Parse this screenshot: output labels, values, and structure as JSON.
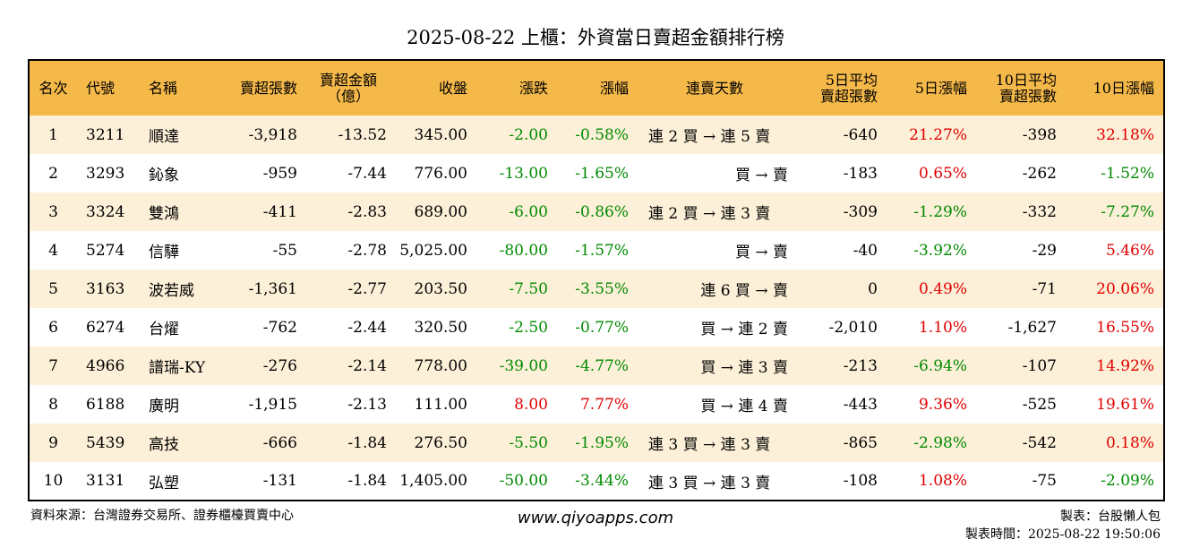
{
  "title": "2025-08-22 上櫃：外資當日賣超金額排行榜",
  "colors": {
    "header_bg": "#f5b94a",
    "row_odd_bg": "#fdf0d8",
    "up": "#e00000",
    "down": "#008a00"
  },
  "headers": {
    "rank": "名次",
    "code": "代號",
    "name": "名稱",
    "net_sell_shares": "賣超張數",
    "net_sell_amount_line1": "賣超金額",
    "net_sell_amount_line2": "（億）",
    "close": "收盤",
    "change": "漲跌",
    "change_pct": "漲幅",
    "streak": "連賣天數",
    "avg5_line1": "5日平均",
    "avg5_line2": "賣超張數",
    "chg5": "5日漲幅",
    "avg10_line1": "10日平均",
    "avg10_line2": "賣超張數",
    "chg10": "10日漲幅"
  },
  "rows": [
    {
      "rank": "1",
      "code": "3211",
      "name": "順達",
      "shares": "-3,918",
      "amount": "-13.52",
      "close": "345.00",
      "change": "-2.00",
      "change_dir": "neg",
      "pct": "-0.58%",
      "pct_dir": "neg",
      "streak": "連 2 買 → 連 5 賣",
      "streak_align": "l",
      "avg5": "-640",
      "chg5": "21.27%",
      "chg5_dir": "pos",
      "avg10": "-398",
      "chg10": "32.18%",
      "chg10_dir": "pos"
    },
    {
      "rank": "2",
      "code": "3293",
      "name": "鈊象",
      "shares": "-959",
      "amount": "-7.44",
      "close": "776.00",
      "change": "-13.00",
      "change_dir": "neg",
      "pct": "-1.65%",
      "pct_dir": "neg",
      "streak": "買 → 賣",
      "streak_align": "r",
      "avg5": "-183",
      "chg5": "0.65%",
      "chg5_dir": "pos",
      "avg10": "-262",
      "chg10": "-1.52%",
      "chg10_dir": "neg"
    },
    {
      "rank": "3",
      "code": "3324",
      "name": "雙鴻",
      "shares": "-411",
      "amount": "-2.83",
      "close": "689.00",
      "change": "-6.00",
      "change_dir": "neg",
      "pct": "-0.86%",
      "pct_dir": "neg",
      "streak": "連 2 買 → 連 3 賣",
      "streak_align": "l",
      "avg5": "-309",
      "chg5": "-1.29%",
      "chg5_dir": "neg",
      "avg10": "-332",
      "chg10": "-7.27%",
      "chg10_dir": "neg"
    },
    {
      "rank": "4",
      "code": "5274",
      "name": "信驊",
      "shares": "-55",
      "amount": "-2.78",
      "close": "5,025.00",
      "change": "-80.00",
      "change_dir": "neg",
      "pct": "-1.57%",
      "pct_dir": "neg",
      "streak": "買 → 賣",
      "streak_align": "r",
      "avg5": "-40",
      "chg5": "-3.92%",
      "chg5_dir": "neg",
      "avg10": "-29",
      "chg10": "5.46%",
      "chg10_dir": "pos"
    },
    {
      "rank": "5",
      "code": "3163",
      "name": "波若威",
      "shares": "-1,361",
      "amount": "-2.77",
      "close": "203.50",
      "change": "-7.50",
      "change_dir": "neg",
      "pct": "-3.55%",
      "pct_dir": "neg",
      "streak": "連 6 買 → 賣",
      "streak_align": "r",
      "avg5": "0",
      "chg5": "0.49%",
      "chg5_dir": "pos",
      "avg10": "-71",
      "chg10": "20.06%",
      "chg10_dir": "pos"
    },
    {
      "rank": "6",
      "code": "6274",
      "name": "台燿",
      "shares": "-762",
      "amount": "-2.44",
      "close": "320.50",
      "change": "-2.50",
      "change_dir": "neg",
      "pct": "-0.77%",
      "pct_dir": "neg",
      "streak": "買 → 連 2 賣",
      "streak_align": "r",
      "avg5": "-2,010",
      "chg5": "1.10%",
      "chg5_dir": "pos",
      "avg10": "-1,627",
      "chg10": "16.55%",
      "chg10_dir": "pos"
    },
    {
      "rank": "7",
      "code": "4966",
      "name": "譜瑞-KY",
      "shares": "-276",
      "amount": "-2.14",
      "close": "778.00",
      "change": "-39.00",
      "change_dir": "neg",
      "pct": "-4.77%",
      "pct_dir": "neg",
      "streak": "買 → 連 3 賣",
      "streak_align": "r",
      "avg5": "-213",
      "chg5": "-6.94%",
      "chg5_dir": "neg",
      "avg10": "-107",
      "chg10": "14.92%",
      "chg10_dir": "pos"
    },
    {
      "rank": "8",
      "code": "6188",
      "name": "廣明",
      "shares": "-1,915",
      "amount": "-2.13",
      "close": "111.00",
      "change": "8.00",
      "change_dir": "pos",
      "pct": "7.77%",
      "pct_dir": "pos",
      "streak": "買 → 連 4 賣",
      "streak_align": "r",
      "avg5": "-443",
      "chg5": "9.36%",
      "chg5_dir": "pos",
      "avg10": "-525",
      "chg10": "19.61%",
      "chg10_dir": "pos"
    },
    {
      "rank": "9",
      "code": "5439",
      "name": "高技",
      "shares": "-666",
      "amount": "-1.84",
      "close": "276.50",
      "change": "-5.50",
      "change_dir": "neg",
      "pct": "-1.95%",
      "pct_dir": "neg",
      "streak": "連 3 買 → 連 3 賣",
      "streak_align": "l",
      "avg5": "-865",
      "chg5": "-2.98%",
      "chg5_dir": "neg",
      "avg10": "-542",
      "chg10": "0.18%",
      "chg10_dir": "pos"
    },
    {
      "rank": "10",
      "code": "3131",
      "name": "弘塑",
      "shares": "-131",
      "amount": "-1.84",
      "close": "1,405.00",
      "change": "-50.00",
      "change_dir": "neg",
      "pct": "-3.44%",
      "pct_dir": "neg",
      "streak": "連 3 買 → 連 3 賣",
      "streak_align": "l",
      "avg5": "-108",
      "chg5": "1.08%",
      "chg5_dir": "pos",
      "avg10": "-75",
      "chg10": "-2.09%",
      "chg10_dir": "neg"
    }
  ],
  "footer": {
    "source": "資料來源：台灣證券交易所、證券櫃檯買賣中心",
    "site": "www.qiyoapps.com",
    "maker": "製表：台股懶人包",
    "made_time": "製表時間：2025-08-22 19:50:06"
  }
}
